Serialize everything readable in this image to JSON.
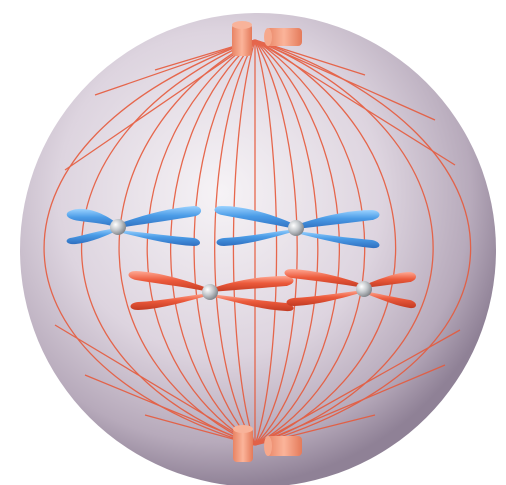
{
  "diagram": {
    "subject": "cell-division",
    "colors": {
      "background": "#ffffff",
      "cell_light": "#f2eef3",
      "cell_mid": "#cfc4d3",
      "cell_dark": "#8d7f94",
      "spindle": "#e65a3c",
      "centriole": "#f59c7c",
      "chromosome_blue": "#3d8fe0",
      "chromosome_blue_light": "#8cc7ff",
      "chromosome_red": "#e8553a",
      "chromosome_red_light": "#ffa088",
      "centromere": "#b8bcc0"
    },
    "chromosomes": [
      {
        "name": "blue-chromosome-left",
        "color": "blue"
      },
      {
        "name": "blue-chromosome-right",
        "color": "blue"
      },
      {
        "name": "red-chromosome-left",
        "color": "red"
      },
      {
        "name": "red-chromosome-right",
        "color": "red"
      }
    ],
    "centriole_pairs": 2
  }
}
